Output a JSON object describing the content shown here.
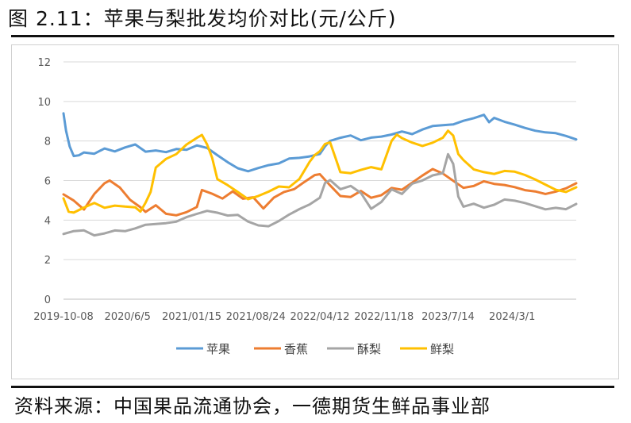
{
  "figure": {
    "title": "图 2.11：苹果与梨批发均价对比(元/公斤)",
    "source": "资料来源：中国果品流通协会，一德期货生鲜品事业部"
  },
  "chart_data": {
    "type": "line",
    "y_ticks": [
      "0",
      "2",
      "4",
      "6",
      "8",
      "10",
      "12"
    ],
    "ylim": [
      0,
      12
    ],
    "grid": "horizontal",
    "legend_position": "bottom",
    "x_ticks": [
      "2019-10-08",
      "2020/6/5",
      "2021/01/15",
      "2021/08/24",
      "2022/04/12",
      "2022/11/18",
      "2023/7/14",
      "2024/3/1"
    ],
    "x_tick_positions": [
      0,
      0.125,
      0.25,
      0.375,
      0.5,
      0.625,
      0.75,
      0.875
    ],
    "series": [
      {
        "name": "苹果",
        "color": "#5B9BD5",
        "points": [
          [
            0,
            9.4
          ],
          [
            0.005,
            8.6
          ],
          [
            0.012,
            7.8
          ],
          [
            0.02,
            7.3
          ],
          [
            0.03,
            7.2
          ],
          [
            0.04,
            7.5
          ],
          [
            0.06,
            7.4
          ],
          [
            0.08,
            7.6
          ],
          [
            0.1,
            7.4
          ],
          [
            0.12,
            7.6
          ],
          [
            0.14,
            7.8
          ],
          [
            0.16,
            7.5
          ],
          [
            0.18,
            7.6
          ],
          [
            0.2,
            7.5
          ],
          [
            0.22,
            7.6
          ],
          [
            0.24,
            7.5
          ],
          [
            0.26,
            7.7
          ],
          [
            0.28,
            7.6
          ],
          [
            0.3,
            7.3
          ],
          [
            0.32,
            7.0
          ],
          [
            0.34,
            6.7
          ],
          [
            0.36,
            6.5
          ],
          [
            0.38,
            6.6
          ],
          [
            0.4,
            6.7
          ],
          [
            0.42,
            6.8
          ],
          [
            0.44,
            7.1
          ],
          [
            0.46,
            7.2
          ],
          [
            0.48,
            7.3
          ],
          [
            0.5,
            7.4
          ],
          [
            0.51,
            7.7
          ],
          [
            0.52,
            8.0
          ],
          [
            0.54,
            8.1
          ],
          [
            0.56,
            8.2
          ],
          [
            0.58,
            8.0
          ],
          [
            0.6,
            8.2
          ],
          [
            0.62,
            8.3
          ],
          [
            0.64,
            8.4
          ],
          [
            0.66,
            8.5
          ],
          [
            0.68,
            8.3
          ],
          [
            0.7,
            8.5
          ],
          [
            0.72,
            8.7
          ],
          [
            0.74,
            8.8
          ],
          [
            0.76,
            8.9
          ],
          [
            0.78,
            9.1
          ],
          [
            0.8,
            9.2
          ],
          [
            0.82,
            9.3
          ],
          [
            0.83,
            9.0
          ],
          [
            0.84,
            9.1
          ],
          [
            0.86,
            8.9
          ],
          [
            0.88,
            8.8
          ],
          [
            0.9,
            8.7
          ],
          [
            0.92,
            8.6
          ],
          [
            0.94,
            8.5
          ],
          [
            0.96,
            8.4
          ],
          [
            0.98,
            8.2
          ],
          [
            1.0,
            8.0
          ]
        ]
      },
      {
        "name": "香蕉",
        "color": "#ED7D31",
        "points": [
          [
            0,
            5.3
          ],
          [
            0.02,
            5.0
          ],
          [
            0.04,
            4.6
          ],
          [
            0.06,
            5.4
          ],
          [
            0.08,
            5.9
          ],
          [
            0.09,
            6.0
          ],
          [
            0.11,
            5.7
          ],
          [
            0.13,
            5.1
          ],
          [
            0.15,
            4.7
          ],
          [
            0.16,
            4.4
          ],
          [
            0.18,
            4.8
          ],
          [
            0.2,
            4.4
          ],
          [
            0.22,
            4.3
          ],
          [
            0.24,
            4.4
          ],
          [
            0.26,
            4.6
          ],
          [
            0.27,
            5.6
          ],
          [
            0.29,
            5.4
          ],
          [
            0.31,
            5.1
          ],
          [
            0.33,
            5.4
          ],
          [
            0.35,
            5.0
          ],
          [
            0.37,
            5.1
          ],
          [
            0.39,
            4.6
          ],
          [
            0.41,
            5.2
          ],
          [
            0.43,
            5.5
          ],
          [
            0.45,
            5.6
          ],
          [
            0.47,
            5.9
          ],
          [
            0.49,
            6.2
          ],
          [
            0.5,
            6.4
          ],
          [
            0.52,
            5.8
          ],
          [
            0.54,
            5.2
          ],
          [
            0.56,
            5.1
          ],
          [
            0.58,
            5.4
          ],
          [
            0.6,
            5.1
          ],
          [
            0.62,
            5.3
          ],
          [
            0.64,
            5.7
          ],
          [
            0.66,
            5.6
          ],
          [
            0.68,
            5.9
          ],
          [
            0.7,
            6.2
          ],
          [
            0.72,
            6.5
          ],
          [
            0.74,
            6.3
          ],
          [
            0.76,
            6.0
          ],
          [
            0.78,
            5.7
          ],
          [
            0.8,
            5.8
          ],
          [
            0.82,
            6.0
          ],
          [
            0.84,
            5.8
          ],
          [
            0.86,
            5.7
          ],
          [
            0.88,
            5.6
          ],
          [
            0.9,
            5.5
          ],
          [
            0.92,
            5.5
          ],
          [
            0.94,
            5.4
          ],
          [
            0.96,
            5.5
          ],
          [
            0.98,
            5.6
          ],
          [
            1.0,
            5.8
          ]
        ]
      },
      {
        "name": "酥梨",
        "color": "#A5A5A5",
        "points": [
          [
            0,
            3.3
          ],
          [
            0.02,
            3.4
          ],
          [
            0.04,
            3.5
          ],
          [
            0.06,
            3.3
          ],
          [
            0.08,
            3.4
          ],
          [
            0.1,
            3.5
          ],
          [
            0.12,
            3.4
          ],
          [
            0.14,
            3.5
          ],
          [
            0.16,
            3.7
          ],
          [
            0.18,
            3.8
          ],
          [
            0.2,
            3.9
          ],
          [
            0.22,
            4.0
          ],
          [
            0.24,
            4.2
          ],
          [
            0.26,
            4.3
          ],
          [
            0.28,
            4.4
          ],
          [
            0.3,
            4.3
          ],
          [
            0.32,
            4.2
          ],
          [
            0.34,
            4.3
          ],
          [
            0.36,
            4.0
          ],
          [
            0.38,
            3.8
          ],
          [
            0.4,
            3.7
          ],
          [
            0.42,
            3.9
          ],
          [
            0.44,
            4.2
          ],
          [
            0.46,
            4.5
          ],
          [
            0.48,
            4.8
          ],
          [
            0.5,
            5.2
          ],
          [
            0.51,
            5.8
          ],
          [
            0.52,
            6.1
          ],
          [
            0.54,
            5.6
          ],
          [
            0.56,
            5.7
          ],
          [
            0.58,
            5.3
          ],
          [
            0.6,
            4.5
          ],
          [
            0.62,
            4.9
          ],
          [
            0.64,
            5.6
          ],
          [
            0.66,
            5.4
          ],
          [
            0.68,
            5.9
          ],
          [
            0.7,
            6.0
          ],
          [
            0.72,
            6.2
          ],
          [
            0.74,
            6.3
          ],
          [
            0.75,
            7.4
          ],
          [
            0.76,
            6.8
          ],
          [
            0.77,
            5.2
          ],
          [
            0.78,
            4.7
          ],
          [
            0.8,
            4.9
          ],
          [
            0.82,
            4.7
          ],
          [
            0.84,
            4.8
          ],
          [
            0.86,
            5.0
          ],
          [
            0.88,
            4.9
          ],
          [
            0.9,
            4.8
          ],
          [
            0.92,
            4.7
          ],
          [
            0.94,
            4.6
          ],
          [
            0.96,
            4.7
          ],
          [
            0.98,
            4.6
          ],
          [
            1.0,
            4.8
          ]
        ]
      },
      {
        "name": "鲜梨",
        "color": "#FFC000",
        "points": [
          [
            0,
            5.1
          ],
          [
            0.01,
            4.5
          ],
          [
            0.02,
            4.3
          ],
          [
            0.04,
            4.6
          ],
          [
            0.06,
            4.9
          ],
          [
            0.08,
            4.7
          ],
          [
            0.1,
            4.8
          ],
          [
            0.12,
            4.7
          ],
          [
            0.14,
            4.6
          ],
          [
            0.15,
            4.5
          ],
          [
            0.16,
            4.8
          ],
          [
            0.17,
            5.5
          ],
          [
            0.18,
            6.6
          ],
          [
            0.2,
            7.1
          ],
          [
            0.22,
            7.4
          ],
          [
            0.24,
            7.9
          ],
          [
            0.26,
            8.2
          ],
          [
            0.27,
            8.3
          ],
          [
            0.28,
            7.8
          ],
          [
            0.29,
            7.2
          ],
          [
            0.3,
            6.0
          ],
          [
            0.32,
            5.7
          ],
          [
            0.34,
            5.4
          ],
          [
            0.36,
            5.1
          ],
          [
            0.38,
            5.3
          ],
          [
            0.4,
            5.5
          ],
          [
            0.42,
            5.7
          ],
          [
            0.44,
            5.6
          ],
          [
            0.46,
            6.0
          ],
          [
            0.48,
            6.9
          ],
          [
            0.49,
            7.3
          ],
          [
            0.5,
            7.5
          ],
          [
            0.51,
            7.8
          ],
          [
            0.52,
            8.0
          ],
          [
            0.53,
            7.1
          ],
          [
            0.54,
            6.5
          ],
          [
            0.56,
            6.4
          ],
          [
            0.58,
            6.5
          ],
          [
            0.6,
            6.6
          ],
          [
            0.62,
            6.5
          ],
          [
            0.64,
            8.0
          ],
          [
            0.65,
            8.3
          ],
          [
            0.66,
            8.2
          ],
          [
            0.68,
            8.0
          ],
          [
            0.7,
            7.8
          ],
          [
            0.72,
            7.9
          ],
          [
            0.74,
            8.1
          ],
          [
            0.75,
            8.6
          ],
          [
            0.76,
            8.2
          ],
          [
            0.77,
            7.4
          ],
          [
            0.78,
            7.0
          ],
          [
            0.8,
            6.6
          ],
          [
            0.82,
            6.5
          ],
          [
            0.84,
            6.4
          ],
          [
            0.86,
            6.5
          ],
          [
            0.88,
            6.4
          ],
          [
            0.9,
            6.2
          ],
          [
            0.92,
            6.0
          ],
          [
            0.94,
            5.8
          ],
          [
            0.96,
            5.6
          ],
          [
            0.98,
            5.5
          ],
          [
            1.0,
            5.7
          ]
        ]
      }
    ]
  }
}
